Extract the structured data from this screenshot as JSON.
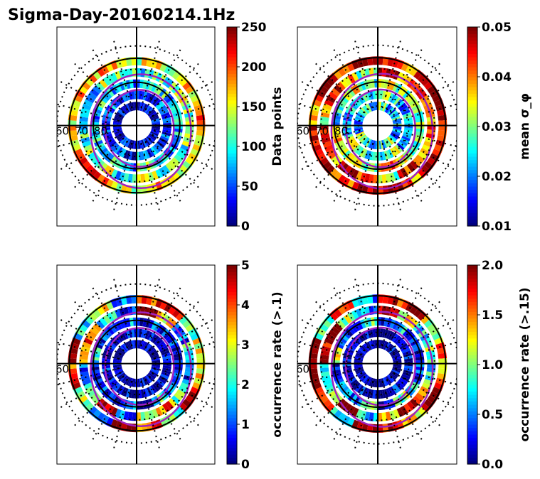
{
  "figure_title": "Sigma-Day-20160214.1Hz",
  "colors": {
    "jet": [
      "#00007f",
      "#0000ff",
      "#007fff",
      "#00ffff",
      "#7fff7f",
      "#ffff00",
      "#ff7f00",
      "#ff0000",
      "#7f0000"
    ],
    "oval": "#a020c0",
    "circle": "#000000"
  },
  "chart_data": [
    {
      "type": "heatmap",
      "projection": "polar",
      "colorbar_label": "Data points",
      "colorbar_ticks": [
        "0",
        "50",
        "100",
        "150",
        "200",
        "250"
      ],
      "clim": [
        0,
        250
      ],
      "latitude_labels": [
        "60",
        "70",
        "80"
      ],
      "grid": true,
      "cells": [
        {
          "ring": 0,
          "values": [
            180,
            160,
            150,
            170,
            140,
            190,
            200,
            160,
            150,
            170,
            180,
            160,
            150,
            140,
            170,
            190
          ]
        },
        {
          "ring": 1,
          "values": [
            120,
            100,
            110,
            130,
            90,
            140,
            120,
            100,
            110,
            90,
            130,
            120,
            100,
            110,
            140,
            120
          ]
        },
        {
          "ring": 2,
          "values": [
            80,
            70,
            90,
            110,
            60,
            100,
            80,
            90,
            70,
            110,
            80,
            60,
            90,
            100,
            70,
            80
          ]
        },
        {
          "ring": 3,
          "values": [
            40,
            30,
            50,
            60,
            20,
            40,
            50,
            30,
            40,
            60,
            30,
            50,
            40,
            20,
            50,
            40
          ]
        },
        {
          "ring": 4,
          "values": [
            20,
            10,
            30,
            15,
            10,
            25,
            20,
            10,
            30,
            15,
            20,
            10,
            25,
            15,
            10,
            20
          ]
        }
      ]
    },
    {
      "type": "heatmap",
      "projection": "polar",
      "colorbar_label": "mean σ_φ",
      "colorbar_ticks": [
        "0.01",
        "0.02",
        "0.03",
        "0.04",
        "0.05"
      ],
      "clim": [
        0.01,
        0.05
      ],
      "latitude_labels": [
        "60",
        "70",
        "80"
      ],
      "grid": true,
      "cells": [
        {
          "ring": 0,
          "values": [
            0.045,
            0.05,
            0.04,
            0.048,
            0.05,
            0.042,
            0.05,
            0.046,
            0.04,
            0.05,
            0.044,
            0.05,
            0.048,
            0.042,
            0.05,
            0.046
          ]
        },
        {
          "ring": 1,
          "values": [
            0.04,
            0.035,
            0.045,
            0.03,
            0.04,
            0.05,
            0.038,
            0.042,
            0.035,
            0.045,
            0.04,
            0.03,
            0.05,
            0.038,
            0.042,
            0.036
          ]
        },
        {
          "ring": 2,
          "values": [
            0.03,
            0.025,
            0.035,
            0.04,
            0.028,
            0.032,
            0.03,
            0.036,
            0.025,
            0.03,
            0.034,
            0.028,
            0.032,
            0.03,
            0.036,
            0.029
          ]
        },
        {
          "ring": 3,
          "values": [
            0.025,
            0.02,
            0.03,
            0.028,
            0.022,
            0.026,
            0.03,
            0.024,
            0.02,
            0.028,
            0.026,
            0.022,
            0.03,
            0.024,
            0.02,
            0.027
          ]
        },
        {
          "ring": 4,
          "values": [
            0.022,
            0.018,
            0.03,
            0.025,
            0.02,
            0.028,
            0.034,
            0.02,
            0.018,
            0.025,
            0.03,
            0.02,
            0.028,
            0.022,
            0.02,
            0.024
          ]
        }
      ]
    },
    {
      "type": "heatmap",
      "projection": "polar",
      "colorbar_label": "occurrence rate (>.1)",
      "colorbar_ticks": [
        "0",
        "1",
        "2",
        "3",
        "4",
        "5"
      ],
      "clim": [
        0,
        5
      ],
      "latitude_labels": [
        "60"
      ],
      "grid": true,
      "cells": [
        {
          "ring": 0,
          "values": [
            3,
            5,
            2,
            4,
            5,
            1,
            3,
            4,
            5,
            2,
            3,
            1,
            4,
            5,
            2,
            3
          ]
        },
        {
          "ring": 1,
          "values": [
            1,
            2,
            4,
            3,
            1,
            5,
            2,
            1,
            3,
            4,
            2,
            1,
            5,
            3,
            1,
            2
          ]
        },
        {
          "ring": 2,
          "values": [
            0.5,
            1,
            2,
            0.3,
            1.5,
            0.6,
            1,
            0.2,
            2,
            1,
            0.5,
            1.5,
            0.3,
            1,
            0.6,
            0.4
          ]
        },
        {
          "ring": 3,
          "values": [
            0.3,
            0.2,
            0.5,
            0.1,
            0.3,
            0.4,
            0.2,
            0.5,
            0.1,
            0.3,
            0.2,
            0.4,
            0.1,
            0.3,
            0.2,
            0.5
          ]
        },
        {
          "ring": 4,
          "values": [
            0.1,
            0.2,
            0.1,
            0.3,
            0.1,
            0.2,
            0.1,
            0.2,
            0.3,
            0.1,
            0.2,
            0.1,
            0.3,
            0.1,
            0.2,
            0.1
          ]
        }
      ]
    },
    {
      "type": "heatmap",
      "projection": "polar",
      "colorbar_label": "occurrence rate (>.15)",
      "colorbar_ticks": [
        "0.0",
        "0.5",
        "1.0",
        "1.5",
        "2.0"
      ],
      "clim": [
        0,
        2
      ],
      "latitude_labels": [
        "60"
      ],
      "grid": true,
      "cells": [
        {
          "ring": 0,
          "values": [
            1.5,
            2,
            1.2,
            1.8,
            2,
            0.6,
            1.4,
            1.9,
            2,
            1,
            1.6,
            0.5,
            1.8,
            2,
            1.1,
            1.5
          ]
        },
        {
          "ring": 1,
          "values": [
            0.8,
            1.5,
            2,
            1.2,
            0.6,
            2,
            1,
            0.7,
            1.8,
            2,
            1.1,
            0.5,
            2,
            1.3,
            0.8,
            1
          ]
        },
        {
          "ring": 2,
          "values": [
            0.3,
            0.6,
            1,
            0.2,
            0.9,
            0.4,
            0.7,
            0.1,
            1.2,
            0.6,
            0.3,
            0.9,
            0.2,
            0.6,
            0.4,
            0.2
          ]
        },
        {
          "ring": 3,
          "values": [
            0.1,
            0.1,
            0.2,
            0.05,
            0.1,
            0.2,
            0.1,
            0.2,
            0.05,
            0.1,
            0.1,
            0.2,
            0.05,
            0.1,
            0.1,
            0.2
          ]
        },
        {
          "ring": 4,
          "values": [
            0.05,
            0.1,
            0.05,
            0.1,
            0.05,
            0.1,
            0.05,
            0.1,
            0.1,
            0.05,
            0.1,
            0.05,
            0.1,
            0.05,
            0.1,
            0.05
          ]
        }
      ]
    }
  ]
}
